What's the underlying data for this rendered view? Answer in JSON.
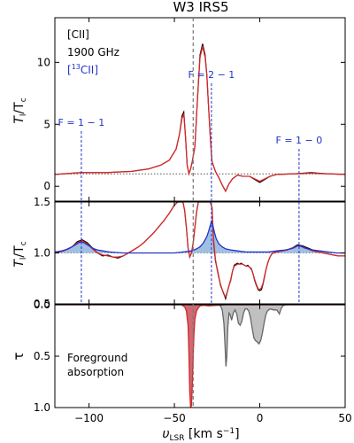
{
  "chart_data": {
    "title": "W3 IRS5",
    "type": "line",
    "shared_x": {
      "label": "υLSR [km s−1]",
      "label_main": "υ",
      "label_sub": "LSR",
      "label_unit_pre": " [km s",
      "label_unit_sup": "−1",
      "label_unit_post": "]",
      "range": [
        -120,
        50
      ],
      "ticks": [
        -100,
        -50,
        0,
        50
      ],
      "tick_labels": [
        "−100",
        "−50",
        "0",
        "50"
      ]
    },
    "vertical_reference": {
      "x": -39,
      "style": "gray dashed"
    },
    "panels": [
      {
        "id": "top",
        "ylabel": "Tl/Tc",
        "ylabel_main": "T",
        "ylabel_sub_num": "l",
        "ylabel_den": "/T",
        "ylabel_sub_den": "c",
        "ylim": [
          -1.2,
          13.6
        ],
        "yticks": [
          0,
          5,
          10
        ],
        "ytick_labels": [
          "0",
          "5",
          "10"
        ],
        "annotations": [
          "[CII]",
          "1900 GHz",
          "[13CII]"
        ],
        "annotation_13c": {
          "bracket_open": "[",
          "sup": "13",
          "rest": "CII]"
        },
        "hyperfine_lines": [
          {
            "label": "F = 1 − 1",
            "x": -104.5
          },
          {
            "label": "F = 2 − 1",
            "x": -28.3
          },
          {
            "label": "F = 1 − 0",
            "x": 23.0
          }
        ],
        "continuum_level": 1.0,
        "series": [
          {
            "name": "",
            "color": "#000000",
            "x": [
              -120,
              -105,
              -90,
              -75,
              -65,
              -58,
              -53,
              -49,
              -47,
              -45.5,
              -44.5,
              -43.5,
              -42.5,
              -41.5,
              -40.5,
              -39.5,
              -38,
              -36.5,
              -35,
              -33.5,
              -32,
              -31,
              -30,
              -29,
              -28,
              -26,
              -24,
              -22,
              -20,
              -18,
              -16,
              -13,
              -10,
              -6,
              -3,
              0,
              3,
              6,
              10,
              20,
              30,
              40,
              50
            ],
            "values": [
              0.95,
              1.1,
              1.1,
              1.2,
              1.4,
              1.7,
              2.1,
              3.0,
              4.2,
              5.7,
              6.0,
              4.0,
              1.7,
              1.0,
              1.4,
              2.0,
              3.2,
              7.0,
              10.6,
              11.5,
              10.6,
              9.0,
              6.5,
              4.0,
              2.0,
              1.2,
              0.7,
              0.1,
              -0.4,
              0.2,
              0.6,
              0.9,
              0.8,
              0.8,
              0.55,
              0.3,
              0.55,
              0.8,
              0.95,
              1.0,
              1.1,
              1.0,
              0.95
            ]
          },
          {
            "name": "",
            "color": "#d62728",
            "x": [
              -120,
              -105,
              -90,
              -75,
              -65,
              -58,
              -53,
              -49,
              -47,
              -45.5,
              -44.5,
              -43.5,
              -42.5,
              -41.5,
              -40.5,
              -39.5,
              -38,
              -36.5,
              -35,
              -33.5,
              -32,
              -31,
              -30,
              -29,
              -28,
              -26,
              -24,
              -22,
              -20,
              -18,
              -16,
              -13,
              -10,
              -6,
              -3,
              0,
              3,
              6,
              10,
              20,
              30,
              40,
              50
            ],
            "values": [
              0.95,
              1.1,
              1.1,
              1.2,
              1.4,
              1.7,
              2.1,
              3.0,
              4.2,
              5.5,
              5.8,
              4.0,
              1.7,
              1.0,
              1.4,
              2.0,
              3.2,
              7.0,
              10.4,
              11.3,
              10.4,
              9.0,
              6.5,
              4.0,
              2.0,
              1.2,
              0.7,
              0.1,
              -0.4,
              0.2,
              0.6,
              0.9,
              0.8,
              0.8,
              0.6,
              0.4,
              0.6,
              0.8,
              0.95,
              1.0,
              1.05,
              1.0,
              0.95
            ]
          }
        ]
      },
      {
        "id": "middle",
        "ylabel": "Tl/Tc",
        "ylim": [
          0.5,
          1.5
        ],
        "yticks": [
          0.5,
          1.0,
          1.5
        ],
        "ytick_labels": [
          "0.5",
          "1.0",
          "1.5"
        ],
        "series": [
          {
            "name": "",
            "color": "#000000",
            "x": [
              -120,
              -115,
              -110,
              -107,
              -104,
              -101,
              -98,
              -95,
              -92,
              -89,
              -86,
              -83,
              -80,
              -77,
              -74,
              -71,
              -68,
              -65,
              -62,
              -59,
              -56,
              -53,
              -50,
              -48,
              -46.5,
              -45,
              -44,
              -43,
              -42,
              -41,
              -40,
              -39,
              -38,
              -37,
              -36,
              -35,
              -34,
              -33,
              -32,
              -31,
              -30,
              -29,
              -28,
              -27,
              -26,
              -25,
              -24,
              -23,
              -22,
              -21,
              -20,
              -19,
              -18,
              -17,
              -16,
              -15,
              -14,
              -13,
              -12,
              -11,
              -10,
              -9,
              -8,
              -7,
              -6,
              -5,
              -4,
              -3,
              -2,
              -1,
              0,
              1,
              2,
              3,
              4,
              5,
              6,
              7,
              8,
              10,
              13,
              16,
              19,
              22,
              25,
              28,
              31,
              34,
              37,
              40,
              43,
              46,
              50
            ],
            "values": [
              1.0,
              1.02,
              1.06,
              1.11,
              1.13,
              1.1,
              1.05,
              1.0,
              0.97,
              0.98,
              0.96,
              0.95,
              0.97,
              1.0,
              1.03,
              1.06,
              1.1,
              1.15,
              1.2,
              1.26,
              1.32,
              1.39,
              1.47,
              1.5,
              1.5,
              1.5,
              1.42,
              1.25,
              1.05,
              0.96,
              1.0,
              1.1,
              1.25,
              1.4,
              1.5,
              1.5,
              1.5,
              1.5,
              1.5,
              1.5,
              1.5,
              1.5,
              1.45,
              1.1,
              0.92,
              0.85,
              0.77,
              0.68,
              0.64,
              0.6,
              0.55,
              0.62,
              0.68,
              0.73,
              0.82,
              0.88,
              0.89,
              0.9,
              0.89,
              0.9,
              0.89,
              0.88,
              0.87,
              0.88,
              0.86,
              0.85,
              0.8,
              0.73,
              0.68,
              0.64,
              0.63,
              0.64,
              0.7,
              0.78,
              0.86,
              0.92,
              0.96,
              0.99,
              1.0,
              1.01,
              1.02,
              1.03,
              1.05,
              1.08,
              1.07,
              1.05,
              1.03,
              1.01,
              1.0,
              0.99,
              0.98,
              0.97,
              0.97
            ]
          },
          {
            "name": "",
            "color": "#d62728",
            "x": [
              -120,
              -115,
              -110,
              -107,
              -104,
              -101,
              -98,
              -95,
              -92,
              -89,
              -86,
              -83,
              -80,
              -77,
              -74,
              -71,
              -68,
              -65,
              -62,
              -59,
              -56,
              -53,
              -50,
              -48,
              -46.5,
              -45,
              -44,
              -43,
              -42,
              -41,
              -40,
              -39,
              -38,
              -37,
              -36,
              -35,
              -34,
              -33,
              -32,
              -31,
              -30,
              -29,
              -28,
              -27,
              -26,
              -25,
              -24,
              -23,
              -22,
              -21,
              -20,
              -19,
              -18,
              -17,
              -16,
              -15,
              -14,
              -13,
              -12,
              -11,
              -10,
              -9,
              -8,
              -7,
              -6,
              -5,
              -4,
              -3,
              -2,
              -1,
              0,
              1,
              2,
              3,
              4,
              5,
              6,
              7,
              8,
              10,
              13,
              16,
              19,
              22,
              25,
              28,
              31,
              34,
              37,
              40,
              43,
              46,
              50
            ],
            "values": [
              1.0,
              1.02,
              1.06,
              1.1,
              1.12,
              1.09,
              1.04,
              1.0,
              0.98,
              0.97,
              0.96,
              0.96,
              0.97,
              1.0,
              1.03,
              1.06,
              1.1,
              1.15,
              1.2,
              1.26,
              1.32,
              1.39,
              1.47,
              1.5,
              1.5,
              1.5,
              1.42,
              1.25,
              1.05,
              0.96,
              1.0,
              1.1,
              1.25,
              1.4,
              1.5,
              1.5,
              1.5,
              1.5,
              1.5,
              1.5,
              1.5,
              1.5,
              1.45,
              1.12,
              0.94,
              0.84,
              0.76,
              0.69,
              0.64,
              0.59,
              0.57,
              0.62,
              0.68,
              0.74,
              0.82,
              0.87,
              0.88,
              0.89,
              0.89,
              0.89,
              0.89,
              0.88,
              0.87,
              0.87,
              0.86,
              0.84,
              0.8,
              0.74,
              0.69,
              0.65,
              0.64,
              0.66,
              0.71,
              0.79,
              0.86,
              0.92,
              0.96,
              0.99,
              1.0,
              1.01,
              1.02,
              1.03,
              1.05,
              1.07,
              1.06,
              1.04,
              1.02,
              1.01,
              1.0,
              0.99,
              0.98,
              0.97,
              0.97
            ]
          },
          {
            "name": "",
            "color": "#2233cc",
            "fill": "#8fb4dc",
            "x": [
              -120,
              -116,
              -112,
              -110,
              -108,
              -106,
              -104.5,
              -103,
              -101,
              -99,
              -97,
              -95,
              -92,
              -88,
              -80,
              -70,
              -60,
              -50,
              -45,
              -40,
              -37,
              -35,
              -33,
              -31,
              -30,
              -29,
              -28.3,
              -27.5,
              -26.5,
              -25.5,
              -24,
              -22,
              -20,
              -17,
              -13,
              -8,
              -2,
              5,
              10,
              15,
              18,
              20,
              22,
              23,
              24,
              26,
              28,
              31,
              35,
              40,
              45,
              50
            ],
            "values": [
              1.01,
              1.02,
              1.04,
              1.06,
              1.08,
              1.1,
              1.11,
              1.1,
              1.08,
              1.06,
              1.04,
              1.03,
              1.02,
              1.01,
              1.0,
              1.0,
              1.0,
              1.0,
              1.01,
              1.02,
              1.04,
              1.06,
              1.1,
              1.16,
              1.21,
              1.27,
              1.31,
              1.27,
              1.2,
              1.14,
              1.09,
              1.06,
              1.04,
              1.03,
              1.02,
              1.01,
              1.01,
              1.01,
              1.02,
              1.03,
              1.04,
              1.05,
              1.07,
              1.07,
              1.07,
              1.05,
              1.04,
              1.03,
              1.02,
              1.01,
              1.0,
              1.0
            ]
          }
        ]
      },
      {
        "id": "bottom",
        "ylabel": "τ",
        "ylim_inverted": [
          1.0,
          0.0
        ],
        "yticks": [
          0.0,
          0.5,
          1.0
        ],
        "ytick_labels": [
          "0.0",
          "0.5",
          "1.0"
        ],
        "annotations": [
          "Foreground",
          "absorption"
        ],
        "series": [
          {
            "name": "",
            "color": "#d62728",
            "fill": "#c7505a",
            "x": [
              -120,
              -60,
              -46,
              -44,
              -43,
              -42,
              -41.5,
              -41,
              -40.5,
              -40,
              -39.5,
              -39,
              -38.5,
              -38,
              -37,
              -36,
              -35,
              -33,
              -30,
              -20,
              0,
              50
            ],
            "values": [
              0,
              0,
              0,
              0.02,
              0.06,
              0.2,
              0.48,
              0.85,
              1.0,
              0.98,
              0.78,
              0.5,
              0.28,
              0.14,
              0.06,
              0.03,
              0.01,
              0.005,
              0.01,
              0.0,
              0.0,
              0.0
            ]
          },
          {
            "name": "",
            "color": "#666666",
            "fill": "#b5b5b5",
            "x": [
              -30,
              -25,
              -23,
              -22,
              -21,
              -20.3,
              -19.8,
              -19.3,
              -18.7,
              -18,
              -17.3,
              -16.5,
              -15.5,
              -14.5,
              -13.5,
              -12.5,
              -11.5,
              -10.5,
              -9.5,
              -8.5,
              -7.5,
              -6.5,
              -5.5,
              -4.5,
              -3.5,
              -2.5,
              -1.5,
              -0.5,
              0.5,
              1.5,
              2.5,
              3.5,
              4.5,
              6,
              8,
              10,
              11.5,
              12.5,
              13.5,
              15,
              17
            ],
            "values": [
              0,
              0,
              0.01,
              0.05,
              0.18,
              0.42,
              0.6,
              0.5,
              0.22,
              0.08,
              0.1,
              0.15,
              0.08,
              0.05,
              0.09,
              0.18,
              0.2,
              0.16,
              0.08,
              0.04,
              0.04,
              0.06,
              0.12,
              0.22,
              0.32,
              0.35,
              0.36,
              0.38,
              0.35,
              0.28,
              0.18,
              0.1,
              0.06,
              0.04,
              0.05,
              0.05,
              0.09,
              0.04,
              0.01,
              0.0,
              0.0
            ]
          }
        ]
      }
    ]
  }
}
